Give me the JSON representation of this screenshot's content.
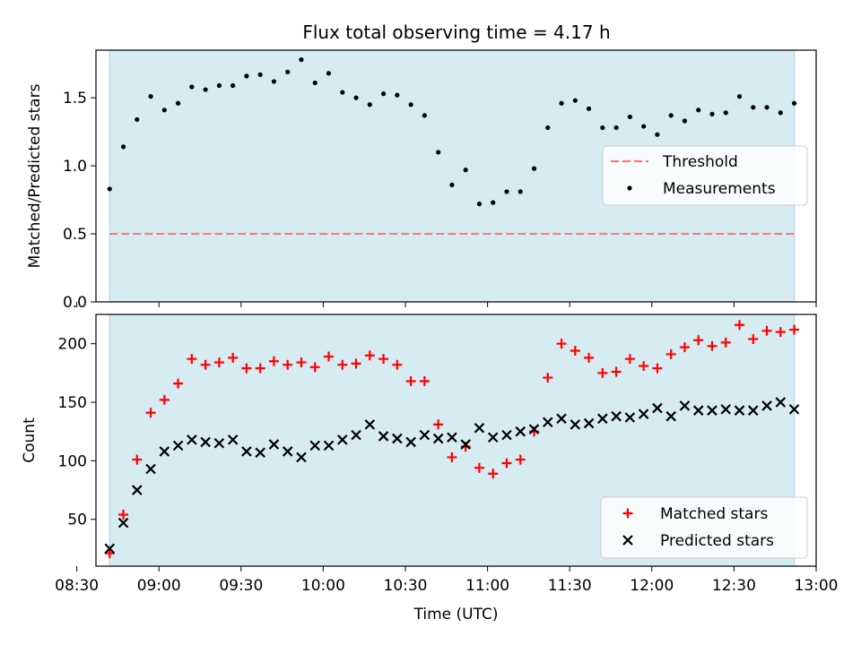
{
  "title": "Flux total observing time = 4.17 h",
  "chart_data": [
    {
      "type": "scatter",
      "ylabel": "Matched/Predicted stars",
      "xlabel": "",
      "xlim": [
        "08:37",
        "13:00"
      ],
      "ylim": [
        0,
        1.85
      ],
      "x_ticks": [
        "08:30",
        "09:00",
        "09:30",
        "10:00",
        "10:30",
        "11:00",
        "11:30",
        "12:00",
        "12:30",
        "13:00"
      ],
      "y_ticks": [
        0.0,
        0.5,
        1.0,
        1.5
      ],
      "y_tick_labels": [
        "0.0",
        "0.5",
        "1.0",
        "1.5"
      ],
      "shaded_span": [
        "08:42",
        "12:52"
      ],
      "shade_color": "#add8e6",
      "legend_position": "center-right",
      "threshold": {
        "name": "Threshold",
        "y": 0.5,
        "color": "#f08080"
      },
      "series": [
        {
          "name": "Measurements",
          "color": "#000000",
          "x": [
            "08:42",
            "08:47",
            "08:52",
            "08:57",
            "09:02",
            "09:07",
            "09:12",
            "09:17",
            "09:22",
            "09:27",
            "09:32",
            "09:37",
            "09:42",
            "09:47",
            "09:52",
            "09:57",
            "10:02",
            "10:07",
            "10:12",
            "10:17",
            "10:22",
            "10:27",
            "10:32",
            "10:37",
            "10:42",
            "10:47",
            "10:52",
            "10:57",
            "11:02",
            "11:07",
            "11:12",
            "11:17",
            "11:22",
            "11:27",
            "11:32",
            "11:37",
            "11:42",
            "11:47",
            "11:52",
            "11:57",
            "12:02",
            "12:07",
            "12:12",
            "12:17",
            "12:22",
            "12:27",
            "12:32",
            "12:37",
            "12:42",
            "12:47",
            "12:52"
          ],
          "values": [
            0.83,
            1.14,
            1.34,
            1.51,
            1.41,
            1.46,
            1.58,
            1.56,
            1.59,
            1.59,
            1.66,
            1.67,
            1.62,
            1.69,
            1.78,
            1.61,
            1.68,
            1.54,
            1.5,
            1.45,
            1.53,
            1.52,
            1.45,
            1.37,
            1.1,
            0.86,
            0.97,
            0.72,
            0.73,
            0.81,
            0.81,
            0.98,
            1.28,
            1.46,
            1.48,
            1.42,
            1.28,
            1.28,
            1.36,
            1.29,
            1.23,
            1.37,
            1.33,
            1.41,
            1.38,
            1.39,
            1.51,
            1.43,
            1.43,
            1.39,
            1.46
          ]
        }
      ]
    },
    {
      "type": "scatter",
      "xlabel": "Time (UTC)",
      "ylabel": "Count",
      "xlim": [
        "08:37",
        "13:00"
      ],
      "ylim": [
        10,
        225
      ],
      "x_ticks": [
        "08:30",
        "09:00",
        "09:30",
        "10:00",
        "10:30",
        "11:00",
        "11:30",
        "12:00",
        "12:30",
        "13:00"
      ],
      "y_ticks": [
        50,
        100,
        150,
        200
      ],
      "shaded_span": [
        "08:42",
        "12:52"
      ],
      "shade_color": "#add8e6",
      "legend_position": "lower-right",
      "series": [
        {
          "name": "Matched stars",
          "marker": "plus",
          "color": "#ff0000",
          "x": [
            "08:42",
            "08:47",
            "08:52",
            "08:57",
            "09:02",
            "09:07",
            "09:12",
            "09:17",
            "09:22",
            "09:27",
            "09:32",
            "09:37",
            "09:42",
            "09:47",
            "09:52",
            "09:57",
            "10:02",
            "10:07",
            "10:12",
            "10:17",
            "10:22",
            "10:27",
            "10:32",
            "10:37",
            "10:42",
            "10:47",
            "10:52",
            "10:57",
            "11:02",
            "11:07",
            "11:12",
            "11:17",
            "11:22",
            "11:27",
            "11:32",
            "11:37",
            "11:42",
            "11:47",
            "11:52",
            "11:57",
            "12:02",
            "12:07",
            "12:12",
            "12:17",
            "12:22",
            "12:27",
            "12:32",
            "12:37",
            "12:42",
            "12:47",
            "12:52"
          ],
          "values": [
            21,
            54,
            101,
            141,
            152,
            166,
            187,
            182,
            184,
            188,
            179,
            179,
            185,
            182,
            184,
            180,
            189,
            182,
            183,
            190,
            187,
            182,
            168,
            168,
            131,
            103,
            112,
            94,
            89,
            98,
            101,
            125,
            171,
            200,
            194,
            188,
            175,
            176,
            187,
            181,
            179,
            191,
            197,
            203,
            198,
            201,
            216,
            204,
            211,
            210,
            212
          ]
        },
        {
          "name": "Predicted stars",
          "marker": "x",
          "color": "#000000",
          "x": [
            "08:42",
            "08:47",
            "08:52",
            "08:57",
            "09:02",
            "09:07",
            "09:12",
            "09:17",
            "09:22",
            "09:27",
            "09:32",
            "09:37",
            "09:42",
            "09:47",
            "09:52",
            "09:57",
            "10:02",
            "10:07",
            "10:12",
            "10:17",
            "10:22",
            "10:27",
            "10:32",
            "10:37",
            "10:42",
            "10:47",
            "10:52",
            "10:57",
            "11:02",
            "11:07",
            "11:12",
            "11:17",
            "11:22",
            "11:27",
            "11:32",
            "11:37",
            "11:42",
            "11:47",
            "11:52",
            "11:57",
            "12:02",
            "12:07",
            "12:12",
            "12:17",
            "12:22",
            "12:27",
            "12:32",
            "12:37",
            "12:42",
            "12:47",
            "12:52"
          ],
          "values": [
            25,
            47,
            75,
            93,
            108,
            113,
            118,
            116,
            115,
            118,
            108,
            107,
            114,
            108,
            103,
            113,
            113,
            118,
            122,
            131,
            121,
            119,
            116,
            122,
            119,
            120,
            114,
            128,
            120,
            122,
            125,
            127,
            133,
            136,
            131,
            132,
            136,
            138,
            137,
            140,
            145,
            138,
            147,
            143,
            143,
            144,
            143,
            143,
            147,
            150,
            144
          ]
        }
      ]
    }
  ]
}
